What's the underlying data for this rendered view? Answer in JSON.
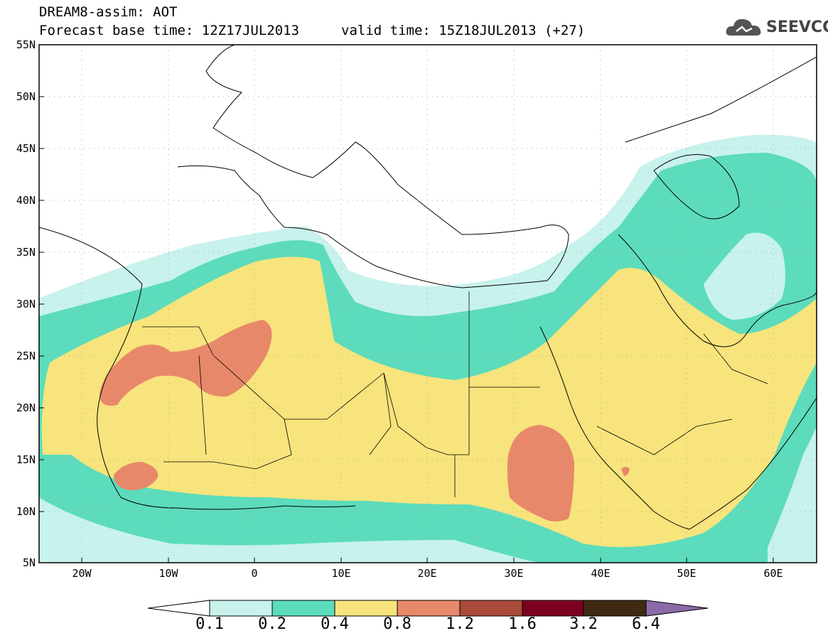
{
  "header": {
    "title_line1": "DREAM8-assim: AOT",
    "title_line2": "Forecast base time: 12Z17JUL2013",
    "valid_time": "valid time: 15Z18JUL2013 (+27)",
    "logo_text": "SEEVCCC"
  },
  "map": {
    "lat_labels": [
      "55N",
      "50N",
      "45N",
      "40N",
      "35N",
      "30N",
      "25N",
      "20N",
      "15N",
      "10N",
      "5N"
    ],
    "lon_labels": [
      "20W",
      "10W",
      "0",
      "10E",
      "20E",
      "30E",
      "40E",
      "50E",
      "60E"
    ]
  },
  "colorbar": {
    "labels": [
      "0.1",
      "0.2",
      "0.4",
      "0.8",
      "1.2",
      "1.6",
      "3.2",
      "6.4"
    ],
    "colors": {
      "under": "#ffffff",
      "c1": "#c8f2ec",
      "c2": "#5cdcbc",
      "c3": "#f7e47c",
      "c4": "#e8886a",
      "c5": "#aa4a3a",
      "c6": "#7e0020",
      "c7": "#412a12",
      "over": "#8a6aa8"
    }
  }
}
